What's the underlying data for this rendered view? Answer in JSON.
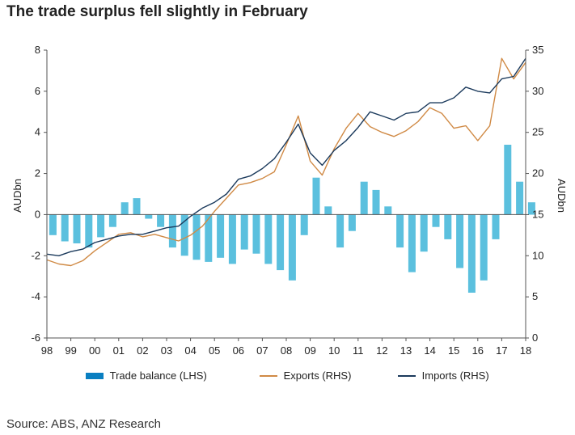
{
  "title": "The trade surplus fell slightly in February",
  "source": "Source: ABS, ANZ Research",
  "chart_data": {
    "type": "bar+line",
    "x_ticks": [
      "98",
      "99",
      "00",
      "01",
      "02",
      "03",
      "04",
      "05",
      "06",
      "07",
      "08",
      "09",
      "10",
      "11",
      "12",
      "13",
      "14",
      "15",
      "16",
      "17",
      "18"
    ],
    "left_axis": {
      "label": "AUDbn",
      "ylim": [
        -6,
        8
      ],
      "ticks": [
        -6,
        -4,
        -2,
        0,
        2,
        4,
        6,
        8
      ]
    },
    "right_axis": {
      "label": "AUDbn",
      "ylim": [
        0,
        35
      ],
      "ticks": [
        0,
        5,
        10,
        15,
        20,
        25,
        30,
        35
      ]
    },
    "grid": false,
    "legend_position": "bottom",
    "colors": {
      "trade_balance": "#5bc0de",
      "trade_balance_legend": "#0a7fc1",
      "exports": "#d08a45",
      "imports": "#1b3a5c"
    },
    "series": [
      {
        "name": "Trade balance (LHS)",
        "type": "bar",
        "axis": "left",
        "x": [
          1998.0,
          1998.5,
          1999.0,
          1999.5,
          2000.0,
          2000.5,
          2001.0,
          2001.5,
          2002.0,
          2002.5,
          2003.0,
          2003.5,
          2004.0,
          2004.5,
          2005.0,
          2005.5,
          2006.0,
          2006.5,
          2007.0,
          2007.5,
          2008.0,
          2008.5,
          2009.0,
          2009.5,
          2010.0,
          2010.5,
          2011.0,
          2011.5,
          2012.0,
          2012.5,
          2013.0,
          2013.5,
          2014.0,
          2014.5,
          2015.0,
          2015.5,
          2016.0,
          2016.5,
          2017.0,
          2017.5,
          2018.0
        ],
        "values": [
          -1.0,
          -1.3,
          -1.4,
          -1.6,
          -1.1,
          -0.6,
          0.6,
          0.8,
          -0.2,
          -0.6,
          -1.6,
          -2.0,
          -2.2,
          -2.3,
          -2.1,
          -2.4,
          -1.7,
          -1.9,
          -2.4,
          -2.7,
          -3.2,
          -1.0,
          1.8,
          0.4,
          -1.6,
          -0.8,
          1.6,
          1.2,
          0.4,
          -1.6,
          -2.8,
          -1.8,
          -0.6,
          -1.2,
          -2.6,
          -3.8,
          -3.2,
          -1.2,
          3.4,
          1.6,
          0.6
        ]
      },
      {
        "name": "Exports (RHS)",
        "type": "line",
        "axis": "right",
        "x": [
          1998.0,
          1998.5,
          1999.0,
          1999.5,
          2000.0,
          2000.5,
          2001.0,
          2001.5,
          2002.0,
          2002.5,
          2003.0,
          2003.5,
          2004.0,
          2004.5,
          2005.0,
          2005.5,
          2006.0,
          2006.5,
          2007.0,
          2007.5,
          2008.0,
          2008.5,
          2009.0,
          2009.5,
          2010.0,
          2010.5,
          2011.0,
          2011.5,
          2012.0,
          2012.5,
          2013.0,
          2013.5,
          2014.0,
          2014.5,
          2015.0,
          2015.5,
          2016.0,
          2016.5,
          2017.0,
          2017.5,
          2018.0
        ],
        "values": [
          9.5,
          9.0,
          8.8,
          9.4,
          10.6,
          11.6,
          12.6,
          12.8,
          12.3,
          12.6,
          12.2,
          11.8,
          12.5,
          13.6,
          15.4,
          17.0,
          18.6,
          18.9,
          19.4,
          20.2,
          23.5,
          27.0,
          21.5,
          19.8,
          23.0,
          25.5,
          27.3,
          25.7,
          25.0,
          24.5,
          25.2,
          26.3,
          28.0,
          27.3,
          25.5,
          25.8,
          24.0,
          25.8,
          34.0,
          31.5,
          33.5
        ]
      },
      {
        "name": "Imports (RHS)",
        "type": "line",
        "axis": "right",
        "x": [
          1998.0,
          1998.5,
          1999.0,
          1999.5,
          2000.0,
          2000.5,
          2001.0,
          2001.5,
          2002.0,
          2002.5,
          2003.0,
          2003.5,
          2004.0,
          2004.5,
          2005.0,
          2005.5,
          2006.0,
          2006.5,
          2007.0,
          2007.5,
          2008.0,
          2008.5,
          2009.0,
          2009.5,
          2010.0,
          2010.5,
          2011.0,
          2011.5,
          2012.0,
          2012.5,
          2013.0,
          2013.5,
          2014.0,
          2014.5,
          2015.0,
          2015.5,
          2016.0,
          2016.5,
          2017.0,
          2017.5,
          2018.0
        ],
        "values": [
          10.2,
          10.0,
          10.5,
          10.8,
          11.6,
          12.0,
          12.4,
          12.6,
          12.6,
          13.0,
          13.4,
          13.6,
          14.8,
          15.8,
          16.5,
          17.5,
          19.3,
          19.7,
          20.6,
          21.8,
          23.8,
          26.0,
          22.5,
          21.0,
          22.8,
          24.0,
          25.6,
          27.5,
          27.0,
          26.5,
          27.3,
          27.5,
          28.6,
          28.6,
          29.2,
          30.5,
          30.0,
          29.8,
          31.5,
          31.8,
          34.0
        ]
      }
    ]
  }
}
